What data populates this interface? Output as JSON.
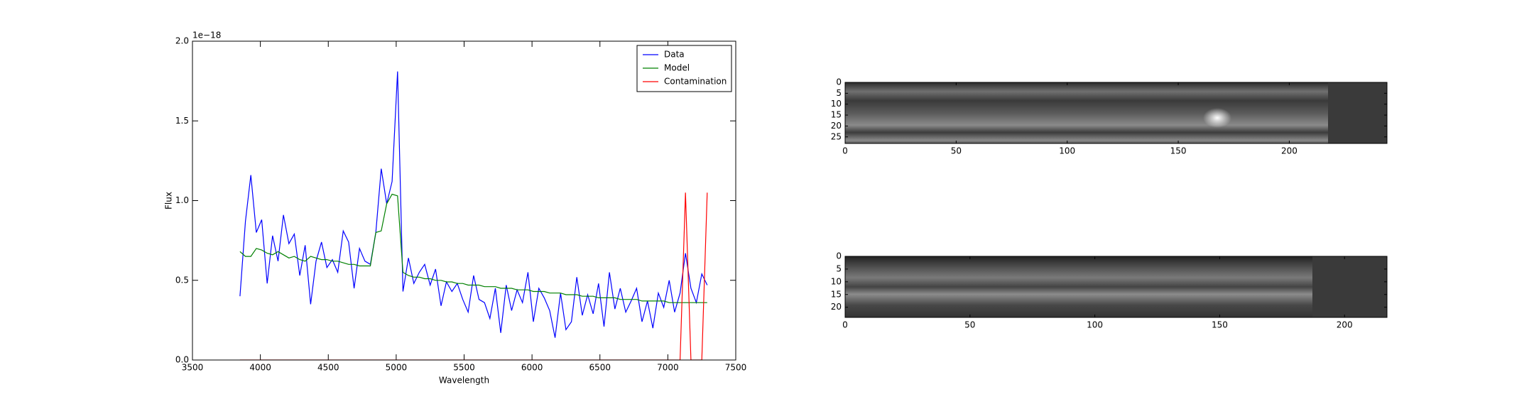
{
  "chart_data": [
    {
      "type": "line",
      "xlabel": "Wavelength",
      "ylabel": "Flux",
      "offset_text": "1e−18",
      "xlim": [
        3500,
        7500
      ],
      "xticks": [
        3500,
        4000,
        4500,
        5000,
        5500,
        6000,
        6500,
        7000,
        7500
      ],
      "ylim": [
        0,
        2
      ],
      "yticks": [
        {
          "value": 0,
          "label": "0.0"
        },
        {
          "value": 0.5,
          "label": "0.5"
        },
        {
          "value": 1,
          "label": "1.0"
        },
        {
          "value": 1.5,
          "label": "1.5"
        },
        {
          "value": 2,
          "label": "2.0"
        }
      ],
      "legend": "upper right",
      "x": [
        3850,
        3890,
        3930,
        3970,
        4010,
        4050,
        4090,
        4130,
        4170,
        4210,
        4250,
        4290,
        4330,
        4370,
        4410,
        4450,
        4490,
        4530,
        4570,
        4610,
        4650,
        4690,
        4730,
        4770,
        4810,
        4850,
        4890,
        4930,
        4970,
        5010,
        5050,
        5090,
        5130,
        5170,
        5210,
        5250,
        5290,
        5330,
        5370,
        5410,
        5450,
        5490,
        5530,
        5570,
        5610,
        5650,
        5690,
        5730,
        5770,
        5810,
        5850,
        5890,
        5930,
        5970,
        6010,
        6050,
        6090,
        6130,
        6170,
        6210,
        6250,
        6290,
        6330,
        6370,
        6410,
        6450,
        6490,
        6530,
        6570,
        6610,
        6650,
        6690,
        6730,
        6770,
        6810,
        6850,
        6890,
        6930,
        6970,
        7010,
        7050,
        7090,
        7130,
        7170,
        7210,
        7250,
        7290
      ],
      "series": [
        {
          "name": "Data",
          "color": "#0000ff",
          "values": [
            0.4,
            0.87,
            1.16,
            0.8,
            0.88,
            0.48,
            0.78,
            0.62,
            0.91,
            0.73,
            0.79,
            0.53,
            0.72,
            0.35,
            0.62,
            0.74,
            0.58,
            0.63,
            0.55,
            0.81,
            0.74,
            0.45,
            0.7,
            0.62,
            0.6,
            0.8,
            1.2,
            0.98,
            1.12,
            1.81,
            0.43,
            0.64,
            0.48,
            0.55,
            0.6,
            0.47,
            0.57,
            0.34,
            0.49,
            0.43,
            0.48,
            0.38,
            0.3,
            0.53,
            0.38,
            0.36,
            0.26,
            0.45,
            0.17,
            0.47,
            0.31,
            0.44,
            0.36,
            0.55,
            0.24,
            0.45,
            0.39,
            0.31,
            0.14,
            0.42,
            0.19,
            0.24,
            0.52,
            0.28,
            0.41,
            0.29,
            0.48,
            0.21,
            0.55,
            0.32,
            0.45,
            0.3,
            0.37,
            0.45,
            0.24,
            0.37,
            0.2,
            0.42,
            0.33,
            0.5,
            0.3,
            0.42,
            0.67,
            0.45,
            0.36,
            0.54,
            0.47
          ]
        },
        {
          "name": "Model",
          "color": "#008000",
          "values": [
            0.68,
            0.65,
            0.65,
            0.7,
            0.69,
            0.67,
            0.66,
            0.68,
            0.66,
            0.64,
            0.65,
            0.63,
            0.62,
            0.65,
            0.64,
            0.63,
            0.63,
            0.62,
            0.62,
            0.61,
            0.6,
            0.6,
            0.59,
            0.59,
            0.59,
            0.8,
            0.81,
            0.98,
            1.04,
            1.03,
            0.55,
            0.53,
            0.52,
            0.52,
            0.51,
            0.51,
            0.5,
            0.5,
            0.49,
            0.49,
            0.48,
            0.48,
            0.47,
            0.47,
            0.47,
            0.46,
            0.46,
            0.46,
            0.45,
            0.45,
            0.45,
            0.44,
            0.44,
            0.44,
            0.43,
            0.43,
            0.43,
            0.42,
            0.42,
            0.42,
            0.41,
            0.41,
            0.41,
            0.4,
            0.4,
            0.4,
            0.39,
            0.39,
            0.39,
            0.39,
            0.38,
            0.38,
            0.38,
            0.38,
            0.37,
            0.37,
            0.37,
            0.37,
            0.37,
            0.36,
            0.36,
            0.36,
            0.36,
            0.36,
            0.36,
            0.36,
            0.36
          ]
        },
        {
          "name": "Contamination",
          "color": "#ff0000",
          "values": [
            0,
            0,
            0,
            0,
            0,
            0,
            0,
            0,
            0,
            0,
            0,
            0,
            0,
            0,
            0,
            0,
            0,
            0,
            0,
            0,
            0,
            0,
            0,
            0,
            0,
            0,
            0,
            0,
            0,
            0,
            0,
            0,
            0,
            0,
            0,
            0,
            0,
            0,
            0,
            0,
            0,
            0,
            0,
            0,
            0,
            0,
            0,
            0,
            0,
            0,
            0,
            0,
            0,
            0,
            0,
            0,
            0,
            0,
            0,
            0,
            0,
            0,
            0,
            0,
            0,
            0,
            0,
            0,
            0,
            0,
            0,
            0,
            0,
            0,
            0,
            0,
            0,
            0,
            0,
            0,
            0,
            0,
            1.05,
            0,
            0,
            0,
            1.05
          ]
        }
      ]
    },
    {
      "type": "image",
      "xlim": [
        0,
        244
      ],
      "xticks": [
        0,
        50,
        100,
        150,
        200
      ],
      "ylim": [
        28,
        0
      ],
      "yticks": [
        0,
        5,
        10,
        15,
        20,
        25
      ]
    },
    {
      "type": "image",
      "xlim": [
        0,
        217
      ],
      "xticks": [
        0,
        50,
        100,
        150,
        200
      ],
      "ylim": [
        24,
        0
      ],
      "yticks": [
        0,
        5,
        10,
        15,
        20
      ]
    }
  ]
}
